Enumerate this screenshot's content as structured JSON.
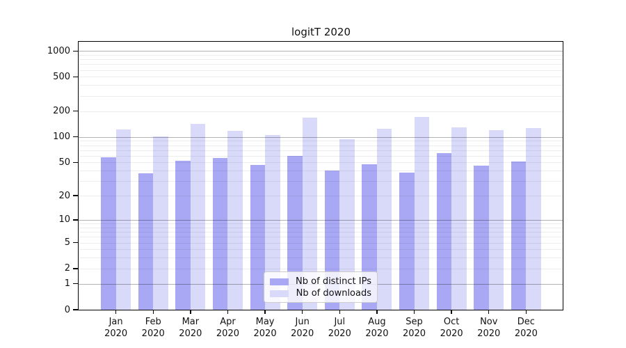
{
  "title": "logitT 2020",
  "legend": {
    "items": [
      {
        "label": "Nb of distinct IPs",
        "color": "#a8a8f4"
      },
      {
        "label": "Nb of downloads",
        "color": "#d9d9fa"
      }
    ]
  },
  "chart_data": {
    "type": "bar",
    "title": "logitT 2020",
    "categories": [
      "Jan 2020",
      "Feb 2020",
      "Mar 2020",
      "Apr 2020",
      "May 2020",
      "Jun 2020",
      "Jul 2020",
      "Aug 2020",
      "Sep 2020",
      "Oct 2020",
      "Nov 2020",
      "Dec 2020"
    ],
    "month_labels": [
      "Jan",
      "Feb",
      "Mar",
      "Apr",
      "May",
      "Jun",
      "Jul",
      "Aug",
      "Sep",
      "Oct",
      "Nov",
      "Dec"
    ],
    "year_label": "2020",
    "series": [
      {
        "name": "Nb of distinct IPs",
        "color": "#a8a8f4",
        "values": [
          58,
          37,
          52,
          56,
          47,
          60,
          40,
          48,
          38,
          64,
          46,
          51
        ]
      },
      {
        "name": "Nb of downloads",
        "color": "#d9d9fa",
        "values": [
          122,
          102,
          141,
          117,
          106,
          169,
          94,
          124,
          171,
          128,
          119,
          127
        ]
      }
    ],
    "xlabel": "",
    "ylabel": "",
    "yscale": "log(1+y)",
    "yticks": [
      0,
      1,
      2,
      5,
      10,
      20,
      50,
      100,
      200,
      500,
      1000
    ],
    "ylim": [
      0,
      1280
    ],
    "grid": "both",
    "legend_position": "lower-center"
  }
}
